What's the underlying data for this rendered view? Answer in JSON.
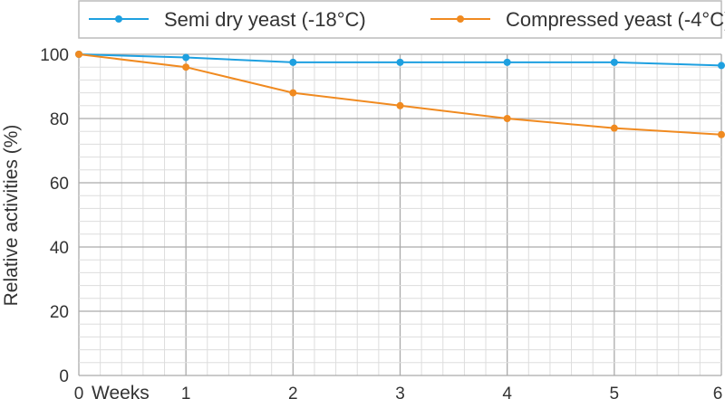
{
  "chart_data": {
    "type": "line",
    "title": "",
    "xlabel": "Weeks",
    "ylabel": "Relative activities (%)",
    "x": [
      0,
      1,
      2,
      3,
      4,
      5,
      6
    ],
    "xlim": [
      0,
      6
    ],
    "ylim": [
      0,
      100
    ],
    "x_ticks": [
      "0",
      "1",
      "2",
      "3",
      "4",
      "5",
      "6"
    ],
    "y_ticks": [
      "0",
      "20",
      "40",
      "60",
      "80",
      "100"
    ],
    "grid": true,
    "legend_placement": "top",
    "series": [
      {
        "name": "Semi dry yeast (-18°C)",
        "color": "#1ea0e0",
        "values": [
          100,
          99,
          97.5,
          97.5,
          97.5,
          97.5,
          96.5
        ]
      },
      {
        "name": "Compressed yeast (-4°C)",
        "color": "#f08a20",
        "values": [
          100,
          96,
          88,
          84,
          80,
          77,
          75
        ]
      }
    ]
  }
}
